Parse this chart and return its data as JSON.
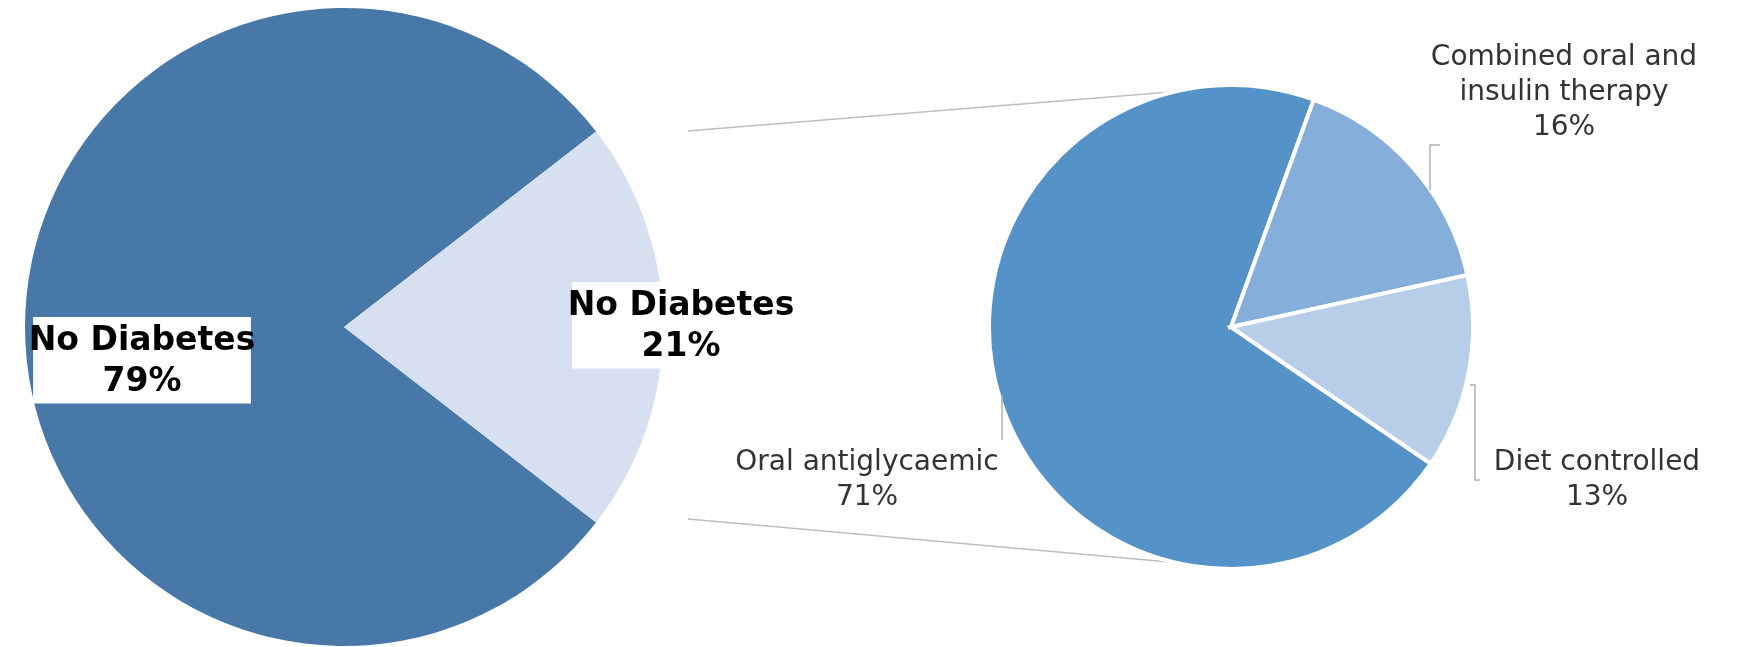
{
  "chart_data": [
    {
      "type": "pie",
      "categories": [
        "No Diabetes",
        "No Diabetes"
      ],
      "values": [
        79,
        21
      ],
      "colors": [
        "#4878a8",
        "#d6e0f0"
      ],
      "value_labels": [
        "79%",
        "21%"
      ]
    },
    {
      "type": "pie",
      "categories": [
        "Oral antiglycaemic",
        "Combined oral and insulin therapy",
        "Diet controlled"
      ],
      "values": [
        71,
        16,
        13
      ],
      "colors": [
        "#5592c8",
        "#85aedb",
        "#b8cde8"
      ],
      "value_labels": [
        "71%",
        "16%",
        "13%"
      ]
    }
  ]
}
